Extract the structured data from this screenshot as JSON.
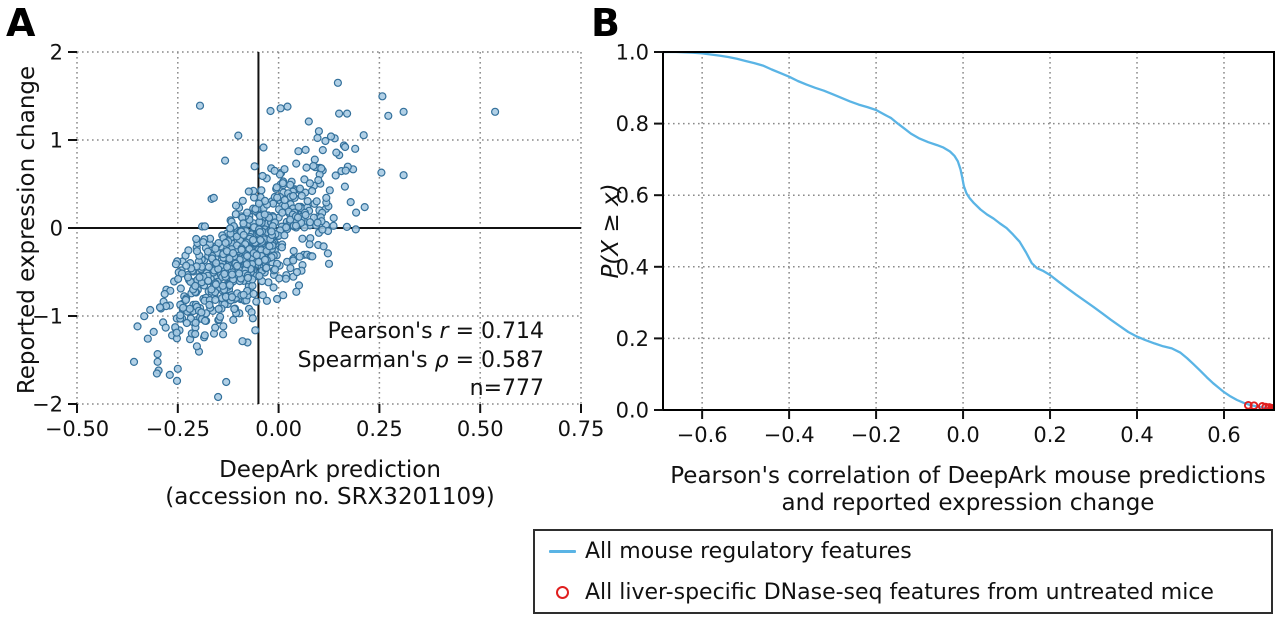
{
  "figure": {
    "panel_a_letter": "A",
    "panel_b_letter": "B"
  },
  "colors": {
    "scatter_fill": "#a6c9e2",
    "scatter_edge": "#33709b",
    "curve_blue": "#5ab4e5",
    "marker_red": "#e01f1f",
    "grid": "#8a8a8a",
    "axis": "#111111"
  },
  "panel_a": {
    "y_axis_title": "Reported expression change",
    "x_axis_title_line1": "DeepArk prediction",
    "x_axis_title_line2": "(accession no. SRX3201109)",
    "annotation": {
      "pearson": {
        "pre": "Pearson's ",
        "sym": "r",
        "post": " = 0.714"
      },
      "spearman": {
        "pre": "Spearman's ",
        "sym": "ρ",
        "post": " = 0.587"
      },
      "n": {
        "pre": "n=777",
        "sym": "",
        "post": ""
      }
    }
  },
  "panel_b": {
    "y_axis_title": "P(X ≥ x)",
    "x_axis_title_line1": "Pearson's correlation of DeepArk mouse predictions",
    "x_axis_title_line2": "and reported expression change"
  },
  "legend": {
    "items": [
      {
        "label": "All mouse regulatory features",
        "marker": "line-icon"
      },
      {
        "label": "All liver-specific DNase-seq features from untreated mice",
        "marker": "open-circle-icon"
      }
    ]
  },
  "chart_data": [
    {
      "type": "scatter",
      "panel": "A",
      "title": "",
      "xlabel": "DeepArk prediction (accession no. SRX3201109)",
      "ylabel": "Reported expression change",
      "xlim": [
        -0.5,
        0.75
      ],
      "ylim": [
        -2,
        2
      ],
      "grid": "dotted",
      "x_ticks": [
        {
          "v": -0.5,
          "label": "−0.50"
        },
        {
          "v": -0.25,
          "label": "−0.25"
        },
        {
          "v": 0.0,
          "label": "0.00"
        },
        {
          "v": 0.25,
          "label": "0.25"
        },
        {
          "v": 0.5,
          "label": "0.50"
        },
        {
          "v": 0.75,
          "label": "0.75"
        }
      ],
      "y_ticks": [
        {
          "v": -2,
          "label": "−2"
        },
        {
          "v": -1,
          "label": "−1"
        },
        {
          "v": 0,
          "label": "0"
        },
        {
          "v": 1,
          "label": "1"
        },
        {
          "v": 2,
          "label": "2"
        }
      ],
      "vline_x": -0.05,
      "hline_y": 0,
      "stats": {
        "pearson_r": 0.714,
        "spearman_rho": 0.587,
        "n": 777
      },
      "scatter_generator": {
        "seed": 42,
        "n_random": 756,
        "mean": [
          -0.075,
          -0.27
        ],
        "sd": [
          0.105,
          0.5
        ],
        "rho": 0.72,
        "bounds": {
          "xmin": -0.36,
          "xmax": 0.45,
          "ymin": -1.9,
          "ymax": 1.55
        }
      },
      "outlier_points": [
        [
          0.537,
          1.32
        ],
        [
          0.147,
          1.65
        ],
        [
          0.15,
          1.3
        ],
        [
          0.17,
          1.3
        ],
        [
          0.005,
          1.36
        ],
        [
          0.022,
          1.38
        ],
        [
          0.31,
          1.32
        ],
        [
          -0.195,
          1.39
        ],
        [
          -0.02,
          1.33
        ],
        [
          0.075,
          1.21
        ],
        [
          0.1,
          1.1
        ],
        [
          0.165,
          0.92
        ],
        [
          0.19,
          0.9
        ],
        [
          0.255,
          0.63
        ],
        [
          0.31,
          0.6
        ],
        [
          -0.1,
          1.05
        ],
        [
          0.13,
          1.04
        ],
        [
          -0.15,
          -1.92
        ],
        [
          -0.13,
          -1.75
        ],
        [
          -0.25,
          -1.6
        ],
        [
          -0.3,
          -1.52
        ]
      ]
    },
    {
      "type": "line",
      "panel": "B",
      "title": "",
      "xlabel": "Pearson's correlation of DeepArk mouse predictions and reported expression change",
      "ylabel": "P(X ≥ x)",
      "xlim": [
        -0.69,
        0.715
      ],
      "ylim": [
        0,
        1.0
      ],
      "grid": "dotted",
      "x_ticks": [
        {
          "v": -0.6,
          "label": "−0.6"
        },
        {
          "v": -0.4,
          "label": "−0.4"
        },
        {
          "v": -0.2,
          "label": "−0.2"
        },
        {
          "v": 0.0,
          "label": "0.0"
        },
        {
          "v": 0.2,
          "label": "0.2"
        },
        {
          "v": 0.4,
          "label": "0.4"
        },
        {
          "v": 0.6,
          "label": "0.6"
        }
      ],
      "y_ticks": [
        {
          "v": 0.0,
          "label": "0.0"
        },
        {
          "v": 0.2,
          "label": "0.2"
        },
        {
          "v": 0.4,
          "label": "0.4"
        },
        {
          "v": 0.6,
          "label": "0.6"
        },
        {
          "v": 0.8,
          "label": "0.8"
        },
        {
          "v": 1.0,
          "label": "1.0"
        }
      ],
      "series": [
        {
          "name": "All mouse regulatory features",
          "style": "line",
          "points": [
            [
              -0.69,
              1.0
            ],
            [
              -0.66,
              1.0
            ],
            [
              -0.64,
              0.999
            ],
            [
              -0.62,
              0.998
            ],
            [
              -0.6,
              0.996
            ],
            [
              -0.58,
              0.993
            ],
            [
              -0.56,
              0.99
            ],
            [
              -0.54,
              0.986
            ],
            [
              -0.52,
              0.981
            ],
            [
              -0.5,
              0.975
            ],
            [
              -0.48,
              0.969
            ],
            [
              -0.46,
              0.962
            ],
            [
              -0.44,
              0.951
            ],
            [
              -0.42,
              0.941
            ],
            [
              -0.4,
              0.931
            ],
            [
              -0.38,
              0.919
            ],
            [
              -0.36,
              0.909
            ],
            [
              -0.34,
              0.9
            ],
            [
              -0.32,
              0.892
            ],
            [
              -0.3,
              0.882
            ],
            [
              -0.28,
              0.872
            ],
            [
              -0.26,
              0.862
            ],
            [
              -0.24,
              0.853
            ],
            [
              -0.22,
              0.846
            ],
            [
              -0.2,
              0.838
            ],
            [
              -0.18,
              0.825
            ],
            [
              -0.165,
              0.815
            ],
            [
              -0.15,
              0.8
            ],
            [
              -0.135,
              0.786
            ],
            [
              -0.12,
              0.772
            ],
            [
              -0.1,
              0.758
            ],
            [
              -0.08,
              0.748
            ],
            [
              -0.06,
              0.74
            ],
            [
              -0.045,
              0.733
            ],
            [
              -0.03,
              0.722
            ],
            [
              -0.02,
              0.71
            ],
            [
              -0.012,
              0.695
            ],
            [
              -0.006,
              0.672
            ],
            [
              -0.002,
              0.65
            ],
            [
              0.002,
              0.625
            ],
            [
              0.008,
              0.605
            ],
            [
              0.015,
              0.592
            ],
            [
              0.025,
              0.578
            ],
            [
              0.04,
              0.56
            ],
            [
              0.055,
              0.546
            ],
            [
              0.07,
              0.535
            ],
            [
              0.085,
              0.521
            ],
            [
              0.1,
              0.508
            ],
            [
              0.115,
              0.49
            ],
            [
              0.13,
              0.47
            ],
            [
              0.145,
              0.44
            ],
            [
              0.158,
              0.41
            ],
            [
              0.17,
              0.396
            ],
            [
              0.185,
              0.388
            ],
            [
              0.2,
              0.377
            ],
            [
              0.22,
              0.358
            ],
            [
              0.24,
              0.34
            ],
            [
              0.26,
              0.322
            ],
            [
              0.28,
              0.305
            ],
            [
              0.3,
              0.288
            ],
            [
              0.32,
              0.27
            ],
            [
              0.34,
              0.252
            ],
            [
              0.36,
              0.235
            ],
            [
              0.38,
              0.218
            ],
            [
              0.4,
              0.205
            ],
            [
              0.42,
              0.195
            ],
            [
              0.44,
              0.186
            ],
            [
              0.46,
              0.178
            ],
            [
              0.48,
              0.172
            ],
            [
              0.5,
              0.16
            ],
            [
              0.515,
              0.145
            ],
            [
              0.53,
              0.128
            ],
            [
              0.545,
              0.11
            ],
            [
              0.56,
              0.092
            ],
            [
              0.575,
              0.075
            ],
            [
              0.586,
              0.064
            ],
            [
              0.6,
              0.05
            ],
            [
              0.615,
              0.038
            ],
            [
              0.63,
              0.028
            ],
            [
              0.645,
              0.02
            ],
            [
              0.66,
              0.014
            ],
            [
              0.675,
              0.01
            ],
            [
              0.69,
              0.007
            ],
            [
              0.7,
              0.005
            ],
            [
              0.71,
              0.004
            ],
            [
              0.715,
              0.003
            ]
          ]
        },
        {
          "name": "All liver-specific DNase-seq features from untreated mice",
          "style": "open-circle",
          "points": [
            [
              0.656,
              0.013
            ],
            [
              0.669,
              0.012
            ],
            [
              0.688,
              0.01
            ],
            [
              0.696,
              0.008
            ],
            [
              0.704,
              0.007
            ],
            [
              0.709,
              0.005
            ],
            [
              0.712,
              0.004
            ],
            [
              0.714,
              0.003
            ],
            [
              0.715,
              0.002
            ],
            [
              0.716,
              0.001
            ]
          ]
        }
      ]
    }
  ]
}
